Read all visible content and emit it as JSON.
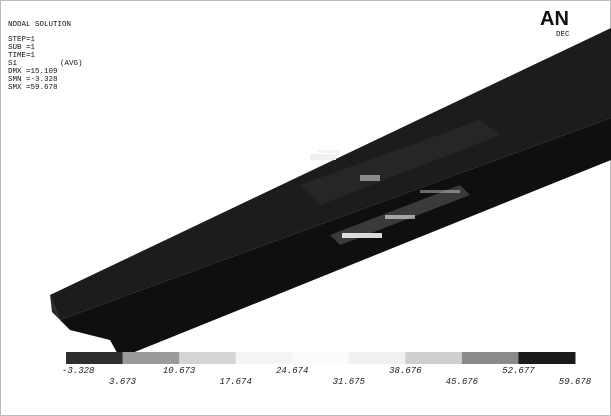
{
  "header": {
    "title": "NODAL SOLUTION",
    "lines": [
      "STEP=1",
      "SUB =1",
      "TIME=1"
    ],
    "result": "S1",
    "result_note": "(AVG)",
    "stats": [
      "DMX =15.109",
      "SMN =-3.328",
      "SMX =59.678"
    ]
  },
  "logo": {
    "text": "AN",
    "subtext": "DEC"
  },
  "legend": {
    "labels": [
      "-3.328",
      "3.673",
      "10.673",
      "17.674",
      "24.674",
      "31.675",
      "38.676",
      "45.676",
      "52.677",
      "59.678"
    ]
  }
}
